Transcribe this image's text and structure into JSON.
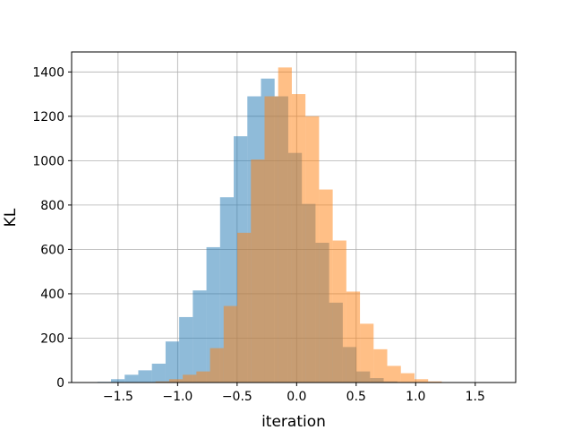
{
  "chart_data": {
    "type": "bar",
    "title": "",
    "xlabel": "iteration",
    "ylabel": "KL",
    "xlim": [
      -1.89,
      1.84
    ],
    "ylim": [
      0,
      1490
    ],
    "grid": true,
    "xticks": [
      -1.5,
      -1.0,
      -0.5,
      0.0,
      0.5,
      1.0,
      1.5
    ],
    "xtick_labels": [
      "−1.5",
      "−1.0",
      "−0.5",
      "0.0",
      "0.5",
      "1.0",
      "1.5"
    ],
    "yticks": [
      0,
      200,
      400,
      600,
      800,
      1000,
      1200,
      1400
    ],
    "ytick_labels": [
      "0",
      "200",
      "400",
      "600",
      "800",
      "1000",
      "1200",
      "1400"
    ],
    "series": [
      {
        "color": "#1f77b4",
        "opacity": 0.5,
        "bin_width": 0.1145,
        "bin_starts": [
          -1.788,
          -1.6735,
          -1.559,
          -1.4445,
          -1.33,
          -1.2155,
          -1.101,
          -0.9865,
          -0.872,
          -0.7575,
          -0.643,
          -0.5285,
          -0.414,
          -0.2995,
          -0.185,
          -0.0705,
          0.044,
          0.1585,
          0.273,
          0.3875,
          0.502,
          0.6165,
          0.731,
          0.8455
        ],
        "values": [
          1,
          3,
          15,
          35,
          55,
          85,
          185,
          295,
          415,
          610,
          835,
          1110,
          1290,
          1370,
          1290,
          1035,
          805,
          630,
          360,
          160,
          50,
          20,
          5,
          1
        ]
      },
      {
        "color": "#ff7f0e",
        "opacity": 0.5,
        "bin_width": 0.1145,
        "bin_starts": [
          -1.3,
          -1.1855,
          -1.071,
          -0.9565,
          -0.842,
          -0.7275,
          -0.613,
          -0.4985,
          -0.384,
          -0.2695,
          -0.155,
          -0.0405,
          0.074,
          0.1885,
          0.303,
          0.4175,
          0.532,
          0.6465,
          0.761,
          0.8755,
          0.99,
          1.1045,
          1.219,
          1.3335,
          1.448,
          1.5625
        ],
        "values": [
          2,
          5,
          15,
          35,
          50,
          155,
          345,
          675,
          1005,
          1290,
          1420,
          1300,
          1200,
          870,
          640,
          410,
          265,
          150,
          75,
          42,
          15,
          5,
          2,
          1,
          1,
          1
        ]
      }
    ]
  }
}
